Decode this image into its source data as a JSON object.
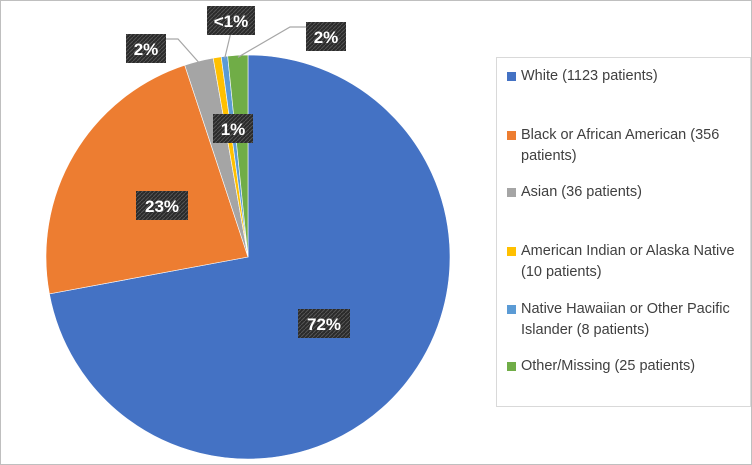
{
  "chart_data": {
    "type": "pie",
    "title": "",
    "slices": [
      {
        "name": "White (1123 patients)",
        "value": 1123,
        "percent_label": "72%",
        "color": "#4472c4"
      },
      {
        "name": "Black or African American (356 patients)",
        "value": 356,
        "percent_label": "23%",
        "color": "#ed7d31"
      },
      {
        "name": "Asian (36 patients)",
        "value": 36,
        "percent_label": "2%",
        "color": "#a5a5a5"
      },
      {
        "name": "American Indian or Alaska Native (10 patients)",
        "value": 10,
        "percent_label": "1%",
        "color": "#ffc000"
      },
      {
        "name": "Native Hawaiian or Other Pacific Islander (8 patients)",
        "value": 8,
        "percent_label": "<1%",
        "color": "#5b9bd5"
      },
      {
        "name": "Other/Missing (25 patients)",
        "value": 25,
        "percent_label": "2%",
        "color": "#70ad47"
      }
    ],
    "start_angle": "12 o'clock",
    "direction": "clockwise",
    "legend_position": "right"
  }
}
